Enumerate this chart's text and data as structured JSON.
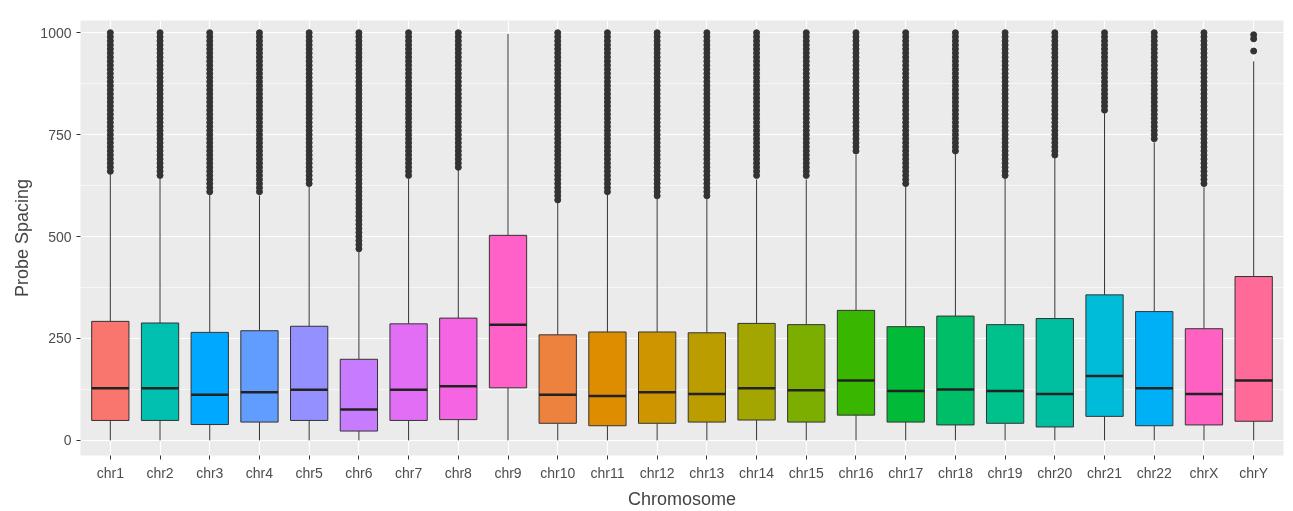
{
  "chart_data": {
    "type": "box",
    "xlabel": "Chromosome",
    "ylabel": "Probe Spacing",
    "categories": [
      "chr1",
      "chr2",
      "chr3",
      "chr4",
      "chr5",
      "chr6",
      "chr7",
      "chr8",
      "chr9",
      "chr10",
      "chr11",
      "chr12",
      "chr13",
      "chr14",
      "chr15",
      "chr16",
      "chr17",
      "chr18",
      "chr19",
      "chr20",
      "chr21",
      "chr22",
      "chrX",
      "chrY"
    ],
    "colors": [
      "#f8766d",
      "#00c0af",
      "#00a9ff",
      "#619cff",
      "#9590ff",
      "#c77cff",
      "#e36ef6",
      "#f564e3",
      "#ff61c9",
      "#ed813e",
      "#de8c00",
      "#cd9600",
      "#bb9d00",
      "#a3a500",
      "#7cae00",
      "#39b600",
      "#00ba38",
      "#00be67",
      "#00c08b",
      "#00bfa0",
      "#00bcd8",
      "#00b0f6",
      "#ff61c3",
      "#ff6a98"
    ],
    "ylim": [
      -37,
      1030
    ],
    "yticks": [
      0,
      250,
      500,
      750,
      1000
    ],
    "grid": true,
    "boxes": [
      {
        "low": 0,
        "q1": 49,
        "median": 128,
        "q3": 292,
        "high": 656,
        "outliers": [
          660,
          670,
          680,
          690,
          700,
          710,
          720,
          730,
          740,
          750,
          760,
          770,
          780,
          790,
          800,
          810,
          820,
          830,
          840,
          850,
          860,
          870,
          880,
          890,
          900,
          910,
          920,
          930,
          940,
          950,
          960,
          970,
          980,
          990,
          1000
        ]
      },
      {
        "low": 0,
        "q1": 49,
        "median": 128,
        "q3": 288,
        "high": 643,
        "outliers": [
          650,
          660,
          670,
          680,
          690,
          700,
          710,
          720,
          730,
          740,
          750,
          760,
          770,
          780,
          790,
          800,
          810,
          820,
          830,
          840,
          850,
          860,
          870,
          880,
          890,
          900,
          910,
          920,
          930,
          940,
          950,
          960,
          970,
          980,
          990,
          1000
        ]
      },
      {
        "low": 0,
        "q1": 39,
        "median": 112,
        "q3": 265,
        "high": 604,
        "outliers": [
          610,
          620,
          630,
          640,
          650,
          660,
          670,
          680,
          690,
          700,
          710,
          720,
          730,
          740,
          750,
          760,
          770,
          780,
          790,
          800,
          810,
          820,
          830,
          840,
          850,
          860,
          870,
          880,
          890,
          900,
          910,
          920,
          930,
          940,
          950,
          960,
          970,
          980,
          990,
          1000
        ]
      },
      {
        "low": 0,
        "q1": 45,
        "median": 118,
        "q3": 269,
        "high": 601,
        "outliers": [
          610,
          620,
          630,
          640,
          650,
          660,
          670,
          680,
          690,
          700,
          710,
          720,
          730,
          740,
          750,
          760,
          770,
          780,
          790,
          800,
          810,
          820,
          830,
          840,
          850,
          860,
          870,
          880,
          890,
          900,
          910,
          920,
          930,
          940,
          950,
          960,
          970,
          980,
          990,
          1000
        ]
      },
      {
        "low": 0,
        "q1": 49,
        "median": 124,
        "q3": 280,
        "high": 627,
        "outliers": [
          630,
          640,
          650,
          660,
          670,
          680,
          690,
          700,
          710,
          720,
          730,
          740,
          750,
          760,
          770,
          780,
          790,
          800,
          810,
          820,
          830,
          840,
          850,
          860,
          870,
          880,
          890,
          900,
          910,
          920,
          930,
          940,
          950,
          960,
          970,
          980,
          990,
          1000
        ]
      },
      {
        "low": 0,
        "q1": 23,
        "median": 76,
        "q3": 199,
        "high": 465,
        "outliers": [
          470,
          480,
          490,
          500,
          510,
          520,
          530,
          540,
          550,
          560,
          570,
          580,
          590,
          600,
          610,
          620,
          630,
          640,
          650,
          660,
          670,
          680,
          690,
          700,
          710,
          720,
          730,
          740,
          750,
          760,
          770,
          780,
          790,
          800,
          810,
          820,
          830,
          840,
          850,
          860,
          870,
          880,
          890,
          900,
          910,
          920,
          930,
          940,
          950,
          960,
          970,
          980,
          990,
          1000
        ]
      },
      {
        "low": 0,
        "q1": 49,
        "median": 124,
        "q3": 286,
        "high": 641,
        "outliers": [
          650,
          660,
          670,
          680,
          690,
          700,
          710,
          720,
          730,
          740,
          750,
          760,
          770,
          780,
          790,
          800,
          810,
          820,
          830,
          840,
          850,
          860,
          870,
          880,
          890,
          900,
          910,
          920,
          930,
          940,
          950,
          960,
          970,
          980,
          990,
          1000
        ]
      },
      {
        "low": 0,
        "q1": 51,
        "median": 133,
        "q3": 300,
        "high": 667,
        "outliers": [
          670,
          680,
          690,
          700,
          710,
          720,
          730,
          740,
          750,
          760,
          770,
          780,
          790,
          800,
          810,
          820,
          830,
          840,
          850,
          860,
          870,
          880,
          890,
          900,
          910,
          920,
          930,
          940,
          950,
          960,
          970,
          980,
          990,
          1000
        ]
      },
      {
        "low": 0,
        "q1": 129,
        "median": 284,
        "q3": 503,
        "high": 997
      },
      {
        "low": 0,
        "q1": 42,
        "median": 112,
        "q3": 259,
        "high": 587,
        "outliers": [
          590,
          600,
          610,
          620,
          630,
          640,
          650,
          660,
          670,
          680,
          690,
          700,
          710,
          720,
          730,
          740,
          750,
          760,
          770,
          780,
          790,
          800,
          810,
          820,
          830,
          840,
          850,
          860,
          870,
          880,
          890,
          900,
          910,
          920,
          930,
          940,
          950,
          960,
          970,
          980,
          990,
          1000
        ]
      },
      {
        "low": 0,
        "q1": 36,
        "median": 109,
        "q3": 266,
        "high": 604,
        "outliers": [
          610,
          620,
          630,
          640,
          650,
          660,
          670,
          680,
          690,
          700,
          710,
          720,
          730,
          740,
          750,
          760,
          770,
          780,
          790,
          800,
          810,
          820,
          830,
          840,
          850,
          860,
          870,
          880,
          890,
          900,
          910,
          920,
          930,
          940,
          950,
          960,
          970,
          980,
          990,
          1000
        ]
      },
      {
        "low": 0,
        "q1": 42,
        "median": 118,
        "q3": 266,
        "high": 594,
        "outliers": [
          600,
          610,
          620,
          630,
          640,
          650,
          660,
          670,
          680,
          690,
          700,
          710,
          720,
          730,
          740,
          750,
          760,
          770,
          780,
          790,
          800,
          810,
          820,
          830,
          840,
          850,
          860,
          870,
          880,
          890,
          900,
          910,
          920,
          930,
          940,
          950,
          960,
          970,
          980,
          990,
          1000
        ]
      },
      {
        "low": 0,
        "q1": 45,
        "median": 114,
        "q3": 264,
        "high": 592,
        "outliers": [
          600,
          610,
          620,
          630,
          640,
          650,
          660,
          670,
          680,
          690,
          700,
          710,
          720,
          730,
          740,
          750,
          760,
          770,
          780,
          790,
          800,
          810,
          820,
          830,
          840,
          850,
          860,
          870,
          880,
          890,
          900,
          910,
          920,
          930,
          940,
          950,
          960,
          970,
          980,
          990,
          1000
        ]
      },
      {
        "low": 0,
        "q1": 50,
        "median": 128,
        "q3": 287,
        "high": 640,
        "outliers": [
          650,
          660,
          670,
          680,
          690,
          700,
          710,
          720,
          730,
          740,
          750,
          760,
          770,
          780,
          790,
          800,
          810,
          820,
          830,
          840,
          850,
          860,
          870,
          880,
          890,
          900,
          910,
          920,
          930,
          940,
          950,
          960,
          970,
          980,
          990,
          1000
        ]
      },
      {
        "low": 0,
        "q1": 45,
        "median": 123,
        "q3": 284,
        "high": 640,
        "outliers": [
          650,
          660,
          670,
          680,
          690,
          700,
          710,
          720,
          730,
          740,
          750,
          760,
          770,
          780,
          790,
          800,
          810,
          820,
          830,
          840,
          850,
          860,
          870,
          880,
          890,
          900,
          910,
          920,
          930,
          940,
          950,
          960,
          970,
          980,
          990,
          1000
        ]
      },
      {
        "low": 0,
        "q1": 62,
        "median": 147,
        "q3": 319,
        "high": 701,
        "outliers": [
          710,
          720,
          730,
          740,
          750,
          760,
          770,
          780,
          790,
          800,
          810,
          820,
          830,
          840,
          850,
          860,
          870,
          880,
          890,
          900,
          910,
          920,
          930,
          940,
          950,
          960,
          970,
          980,
          990,
          1000
        ]
      },
      {
        "low": 0,
        "q1": 45,
        "median": 121,
        "q3": 279,
        "high": 626,
        "outliers": [
          630,
          640,
          650,
          660,
          670,
          680,
          690,
          700,
          710,
          720,
          730,
          740,
          750,
          760,
          770,
          780,
          790,
          800,
          810,
          820,
          830,
          840,
          850,
          860,
          870,
          880,
          890,
          900,
          910,
          920,
          930,
          940,
          950,
          960,
          970,
          980,
          990,
          1000
        ]
      },
      {
        "low": 0,
        "q1": 38,
        "median": 125,
        "q3": 305,
        "high": 704,
        "outliers": [
          710,
          720,
          730,
          740,
          750,
          760,
          770,
          780,
          790,
          800,
          810,
          820,
          830,
          840,
          850,
          860,
          870,
          880,
          890,
          900,
          910,
          920,
          930,
          940,
          950,
          960,
          970,
          980,
          990,
          1000
        ]
      },
      {
        "low": 0,
        "q1": 42,
        "median": 121,
        "q3": 284,
        "high": 647,
        "outliers": [
          650,
          660,
          670,
          680,
          690,
          700,
          710,
          720,
          730,
          740,
          750,
          760,
          770,
          780,
          790,
          800,
          810,
          820,
          830,
          840,
          850,
          860,
          870,
          880,
          890,
          900,
          910,
          920,
          930,
          940,
          950,
          960,
          970,
          980,
          990,
          1000
        ]
      },
      {
        "low": 0,
        "q1": 33,
        "median": 114,
        "q3": 299,
        "high": 693,
        "outliers": [
          700,
          710,
          720,
          730,
          740,
          750,
          760,
          770,
          780,
          790,
          800,
          810,
          820,
          830,
          840,
          850,
          860,
          870,
          880,
          890,
          900,
          910,
          920,
          930,
          940,
          950,
          960,
          970,
          980,
          990,
          1000
        ]
      },
      {
        "low": 0,
        "q1": 59,
        "median": 158,
        "q3": 357,
        "high": 802,
        "outliers": [
          810,
          820,
          830,
          840,
          850,
          860,
          870,
          880,
          890,
          900,
          910,
          920,
          930,
          940,
          950,
          960,
          970,
          980,
          990,
          1000
        ]
      },
      {
        "low": 0,
        "q1": 36,
        "median": 128,
        "q3": 316,
        "high": 731,
        "outliers": [
          740,
          750,
          760,
          770,
          780,
          790,
          800,
          810,
          820,
          830,
          840,
          850,
          860,
          870,
          880,
          890,
          900,
          910,
          920,
          930,
          940,
          950,
          960,
          970,
          980,
          990,
          1000
        ]
      },
      {
        "low": 0,
        "q1": 38,
        "median": 114,
        "q3": 274,
        "high": 621,
        "outliers": [
          630,
          640,
          650,
          660,
          670,
          680,
          690,
          700,
          710,
          720,
          730,
          740,
          750,
          760,
          770,
          780,
          790,
          800,
          810,
          820,
          830,
          840,
          850,
          860,
          870,
          880,
          890,
          900,
          910,
          920,
          930,
          940,
          950,
          960,
          970,
          980,
          990,
          1000
        ]
      },
      {
        "low": 0,
        "q1": 47,
        "median": 147,
        "q3": 402,
        "high": 930,
        "outliers": [
          955,
          985,
          995
        ]
      }
    ]
  }
}
